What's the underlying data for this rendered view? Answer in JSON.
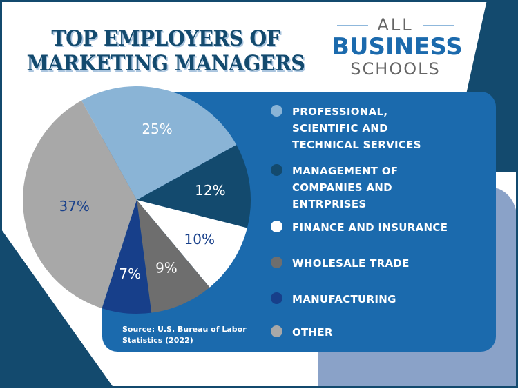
{
  "logo": {
    "line1": "ALL",
    "line2": "BUSINESS",
    "line3": "SCHOOLS"
  },
  "source": "Source: U.S. Bureau of Labor Statistics (2022)",
  "chart_data": {
    "type": "pie",
    "title": "TOP EMPLOYERS OF MARKETING MANAGERS",
    "categories": [
      "PROFESSIONAL, SCIENTIFIC AND TECHNICAL SERVICES",
      "MANAGEMENT OF COMPANIES AND ENTRPRISES",
      "FINANCE AND INSURANCE",
      "WHOLESALE TRADE",
      "MANUFACTURING",
      "OTHER"
    ],
    "values": [
      25,
      12,
      10,
      9,
      7,
      37
    ],
    "labels": [
      "25%",
      "12%",
      "10%",
      "9%",
      "7%",
      "37%"
    ],
    "colors": [
      "#8ab4d6",
      "#134a6e",
      "#ffffff",
      "#6e6e6e",
      "#173f8a",
      "#a8a8a8"
    ],
    "label_colors": [
      "#ffffff",
      "#ffffff",
      "#173f8a",
      "#ffffff",
      "#ffffff",
      "#173f8a"
    ],
    "legend_position": "right"
  }
}
